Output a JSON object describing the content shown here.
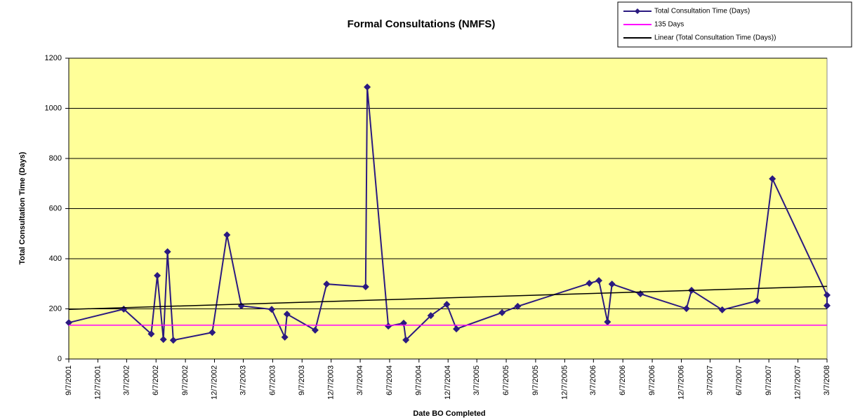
{
  "chart_data": {
    "type": "line",
    "title": "Formal Consultations (NMFS)",
    "x_label": "Date BO Completed",
    "y_label": "Total Consultation Time (Days)",
    "xlim": [
      "9/7/2001",
      "3/7/2008"
    ],
    "xticks": [
      "9/7/2001",
      "12/7/2001",
      "3/7/2002",
      "6/7/2002",
      "9/7/2002",
      "12/7/2002",
      "3/7/2003",
      "6/7/2003",
      "9/7/2003",
      "12/7/2003",
      "3/7/2004",
      "6/7/2004",
      "9/7/2004",
      "12/7/2004",
      "3/7/2005",
      "6/7/2005",
      "9/7/2005",
      "12/7/2005",
      "3/7/2006",
      "6/7/2006",
      "9/7/2006",
      "12/7/2006",
      "3/7/2007",
      "6/7/2007",
      "9/7/2007",
      "12/7/2007",
      "3/7/2008"
    ],
    "ylim": [
      0,
      1200
    ],
    "yticks": [
      0,
      200,
      400,
      600,
      800,
      1000,
      1200
    ],
    "grid": true,
    "plot_color": "#ffff99",
    "legend": "top-right",
    "series": [
      {
        "name": "Total Consultation Time (Days)",
        "color": "#2b1a80",
        "marker": "diamond",
        "x": [
          "9/7/2001",
          "2/26/2002",
          "5/23/2002",
          "6/11/2002",
          "6/30/2002",
          "7/13/2002",
          "7/31/2002",
          "11/30/2002",
          "1/15/2003",
          "3/1/2003",
          "6/4/2003",
          "7/15/2003",
          "7/22/2003",
          "10/18/2003",
          "11/23/2003",
          "3/24/2004",
          "3/29/2004",
          "6/3/2004",
          "7/21/2004",
          "7/28/2004",
          "10/14/2004",
          "12/3/2004",
          "1/2/2005",
          "5/25/2005",
          "7/13/2005",
          "2/22/2006",
          "3/24/2006",
          "4/20/2006",
          "5/4/2006",
          "8/1/2006",
          "12/23/2006",
          "1/8/2007",
          "4/14/2007",
          "8/1/2007",
          "9/18/2007",
          "3/7/2008",
          "3/7/2008"
        ],
        "values": [
          145,
          199,
          100,
          333,
          78,
          428,
          75,
          106,
          495,
          212,
          198,
          87,
          179,
          115,
          299,
          288,
          1085,
          131,
          143,
          76,
          173,
          218,
          120,
          185,
          210,
          302,
          313,
          148,
          299,
          260,
          201,
          274,
          196,
          232,
          719,
          255,
          213
        ]
      },
      {
        "name": "135 Days",
        "color": "#ff00ff",
        "x": [
          "9/7/2001",
          "3/7/2008"
        ],
        "values": [
          135,
          135
        ]
      },
      {
        "name": "Linear (Total Consultation Time (Days))",
        "color": "#000000",
        "x": [
          "9/7/2001",
          "3/7/2008"
        ],
        "values": [
          198,
          290
        ]
      }
    ]
  }
}
